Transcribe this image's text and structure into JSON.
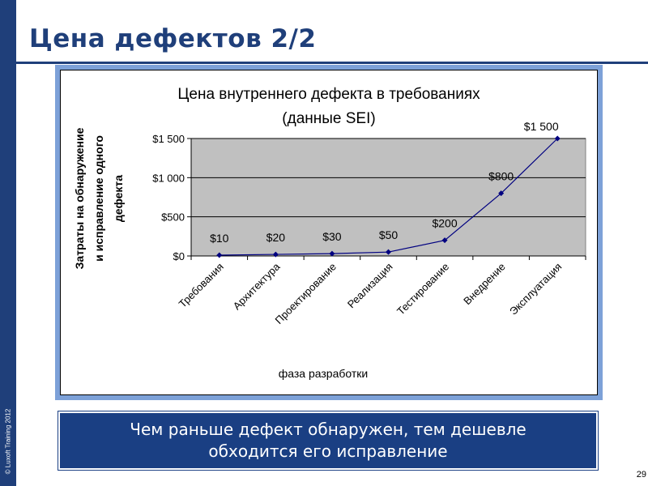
{
  "slide": {
    "title": "Цена дефектов 2/2",
    "copyright": "© Luxoft Training 2012",
    "callout_line1": "Чем раньше дефект обнаружен, тем дешевле",
    "callout_line2": "обходится его исправление",
    "page_number": "29"
  },
  "colors": {
    "brand": "#1f3f7a",
    "frame": "#7da1d8",
    "plot_bg": "#c0c0c0",
    "series_line": "#000080"
  },
  "chart_data": {
    "type": "line",
    "title": "Цена внутреннего дефекта в требованиях",
    "subtitle": "(данные SEI)",
    "xlabel": "фаза разработки",
    "ylabel": "Затраты на обнаружение и исправление одного дефекта",
    "ylabel_lines": [
      "Затраты на обнаружение",
      "и исправление одного",
      "дефекта"
    ],
    "categories": [
      "Требования",
      "Архитектура",
      "Проектирование",
      "Реализация",
      "Тестирование",
      "Внедрение",
      "Эксплуатация"
    ],
    "values": [
      1,
      2,
      3,
      5,
      20,
      80,
      150
    ],
    "data_labels": [
      "$10",
      "$20",
      "$30",
      "$50",
      "$200",
      "$800",
      "$1 500"
    ],
    "yticks": [
      0,
      50,
      100,
      150
    ],
    "ytick_labels": [
      "$0",
      "$500",
      "$1 000",
      "$1 500"
    ],
    "ylim": [
      0,
      150
    ],
    "grid": true,
    "legend": "none"
  }
}
